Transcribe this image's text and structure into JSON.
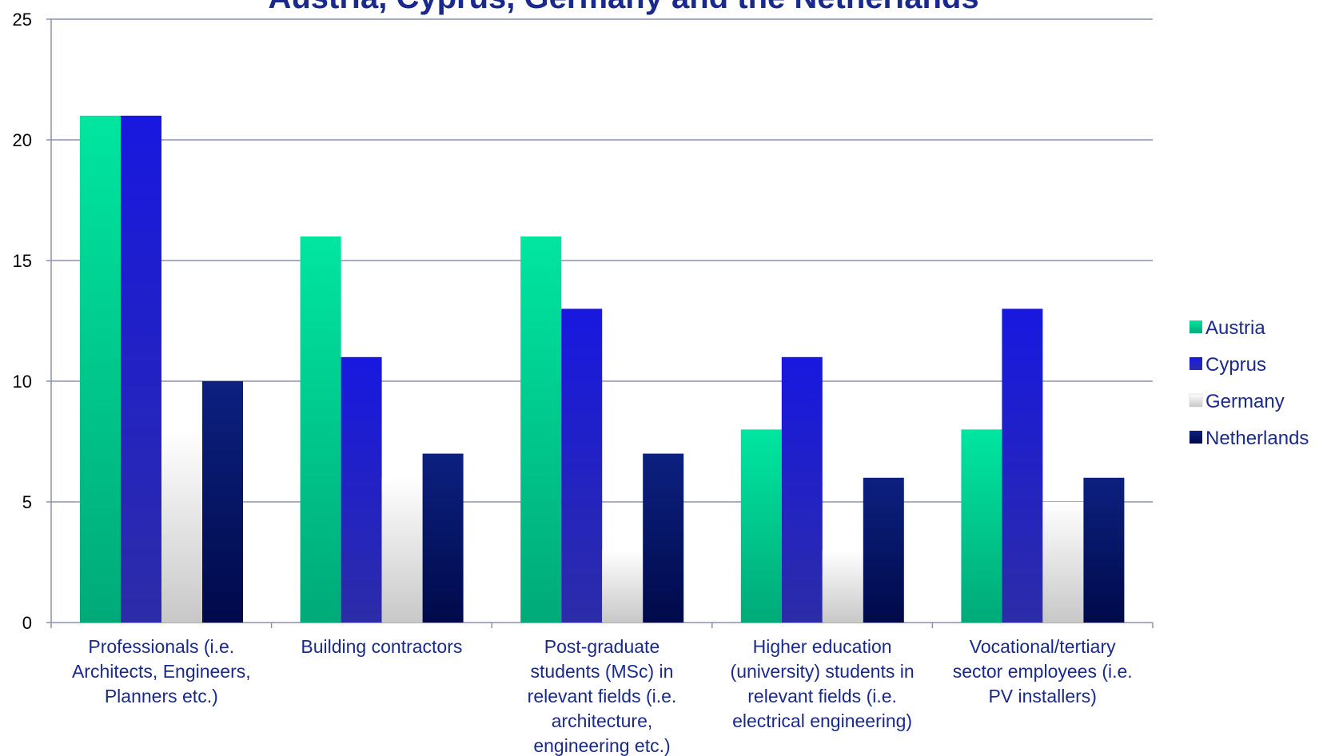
{
  "chart_data": {
    "type": "bar",
    "title": "Austria, Cyprus, Germany and the Netherlands",
    "categories": [
      "Professionals (i.e. Architects, Engineers, Planners etc.)",
      "Building contractors",
      "Post-graduate students (MSc) in relevant fields (i.e. architecture, engineering etc.)",
      "Higher education (university) students in relevant fields (i.e. electrical engineering)",
      "Vocational/tertiary sector employees (i.e. PV installers)"
    ],
    "category_lines": [
      [
        "Professionals (i.e.",
        "Architects, Engineers,",
        "Planners etc.)"
      ],
      [
        "Building contractors"
      ],
      [
        "Post-graduate",
        "students (MSc) in",
        "relevant fields (i.e.",
        "architecture,",
        "engineering etc.)"
      ],
      [
        "Higher education",
        "(university) students in",
        "relevant fields (i.e.",
        "electrical engineering)"
      ],
      [
        "Vocational/tertiary",
        "sector employees (i.e.",
        "PV installers)"
      ]
    ],
    "series": [
      {
        "name": "Austria",
        "values": [
          21,
          16,
          16,
          8,
          8
        ],
        "color_top": "#00e6a0",
        "color_bottom": "#00aa78"
      },
      {
        "name": "Cyprus",
        "values": [
          21,
          11,
          13,
          11,
          13
        ],
        "color_top": "#1818e0",
        "color_bottom": "#2c2ca8"
      },
      {
        "name": "Germany",
        "values": [
          8,
          6,
          3,
          3,
          5
        ],
        "color_top": "#ffffff",
        "color_bottom": "#c8c8c8"
      },
      {
        "name": "Netherlands",
        "values": [
          10,
          7,
          7,
          6,
          6
        ],
        "color_top": "#0c2080",
        "color_bottom": "#000a4a"
      }
    ],
    "ylim": [
      0,
      25
    ],
    "yticks": [
      0,
      5,
      10,
      15,
      20,
      25
    ],
    "grid": true,
    "legend_position": "right"
  }
}
